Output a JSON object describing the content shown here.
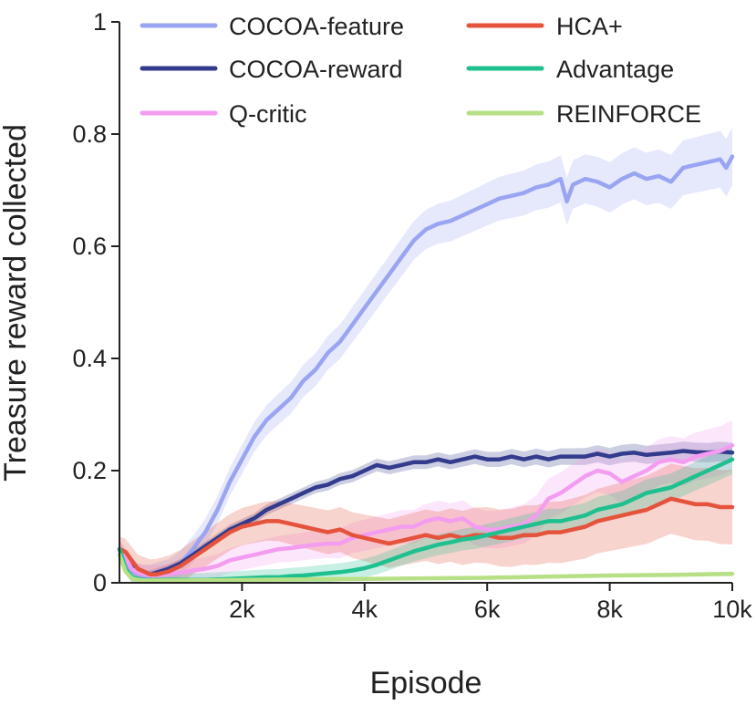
{
  "chart_data": {
    "type": "line",
    "xlabel": "Episode",
    "ylabel": "Treasure reward collected",
    "xlim": [
      0,
      10000
    ],
    "ylim": [
      0,
      1
    ],
    "x_ticks": [
      {
        "value": 2000,
        "label": "2k"
      },
      {
        "value": 4000,
        "label": "4k"
      },
      {
        "value": 6000,
        "label": "6k"
      },
      {
        "value": 8000,
        "label": "8k"
      },
      {
        "value": 10000,
        "label": "10k"
      }
    ],
    "y_ticks": [
      {
        "value": 0,
        "label": "0"
      },
      {
        "value": 0.2,
        "label": "0.2"
      },
      {
        "value": 0.4,
        "label": "0.4"
      },
      {
        "value": 0.6,
        "label": "0.6"
      },
      {
        "value": 0.8,
        "label": "0.8"
      },
      {
        "value": 1,
        "label": "1"
      }
    ],
    "legend_placement": "top",
    "grid": false,
    "shaded_bands": true,
    "series": [
      {
        "name": "COCOA-feature",
        "color": "#9aa5f2",
        "x": [
          0,
          100,
          200,
          300,
          400,
          500,
          600,
          800,
          1000,
          1200,
          1400,
          1600,
          1800,
          2000,
          2200,
          2400,
          2600,
          2800,
          3000,
          3200,
          3400,
          3600,
          3800,
          4000,
          4200,
          4400,
          4600,
          4800,
          5000,
          5200,
          5400,
          5600,
          5800,
          6000,
          6200,
          6400,
          6600,
          6800,
          7000,
          7200,
          7300,
          7400,
          7600,
          7800,
          8000,
          8200,
          8400,
          8600,
          8800,
          9000,
          9200,
          9400,
          9600,
          9800,
          9900,
          10000
        ],
        "y": [
          0.06,
          0.04,
          0.02,
          0.015,
          0.012,
          0.012,
          0.015,
          0.02,
          0.035,
          0.06,
          0.09,
          0.13,
          0.18,
          0.22,
          0.26,
          0.29,
          0.31,
          0.33,
          0.36,
          0.38,
          0.41,
          0.43,
          0.46,
          0.49,
          0.52,
          0.55,
          0.58,
          0.61,
          0.63,
          0.64,
          0.645,
          0.655,
          0.665,
          0.675,
          0.685,
          0.69,
          0.695,
          0.705,
          0.71,
          0.72,
          0.68,
          0.71,
          0.72,
          0.715,
          0.705,
          0.72,
          0.73,
          0.72,
          0.725,
          0.715,
          0.74,
          0.745,
          0.75,
          0.755,
          0.74,
          0.76
        ],
        "band": 0.035
      },
      {
        "name": "COCOA-reward",
        "color": "#333b8c",
        "x": [
          0,
          100,
          200,
          300,
          400,
          500,
          600,
          800,
          1000,
          1200,
          1400,
          1600,
          1800,
          2000,
          2200,
          2400,
          2600,
          2800,
          3000,
          3200,
          3400,
          3600,
          3800,
          4000,
          4200,
          4400,
          4600,
          4800,
          5000,
          5200,
          5400,
          5600,
          5800,
          6000,
          6200,
          6400,
          6600,
          6800,
          7000,
          7200,
          7400,
          7600,
          7800,
          8000,
          8200,
          8400,
          8600,
          8800,
          9000,
          9200,
          9400,
          9600,
          9800,
          10000
        ],
        "y": [
          0.06,
          0.05,
          0.03,
          0.02,
          0.015,
          0.015,
          0.018,
          0.025,
          0.035,
          0.05,
          0.065,
          0.08,
          0.095,
          0.105,
          0.115,
          0.13,
          0.14,
          0.15,
          0.16,
          0.17,
          0.175,
          0.185,
          0.19,
          0.2,
          0.21,
          0.205,
          0.21,
          0.215,
          0.215,
          0.22,
          0.215,
          0.22,
          0.225,
          0.22,
          0.22,
          0.225,
          0.22,
          0.225,
          0.22,
          0.225,
          0.225,
          0.225,
          0.23,
          0.225,
          0.23,
          0.232,
          0.228,
          0.23,
          0.232,
          0.235,
          0.233,
          0.232,
          0.234,
          0.232
        ],
        "band": 0.012
      },
      {
        "name": "Q-critic",
        "color": "#f39cf0",
        "x": [
          0,
          100,
          200,
          300,
          400,
          500,
          600,
          800,
          1000,
          1200,
          1400,
          1600,
          1800,
          2000,
          2200,
          2400,
          2600,
          2800,
          3000,
          3200,
          3400,
          3600,
          3800,
          4000,
          4200,
          4400,
          4600,
          4800,
          5000,
          5200,
          5400,
          5600,
          5800,
          6000,
          6200,
          6400,
          6600,
          6800,
          7000,
          7200,
          7400,
          7600,
          7800,
          8000,
          8200,
          8400,
          8600,
          8800,
          9000,
          9200,
          9400,
          9600,
          9800,
          10000
        ],
        "y": [
          0.06,
          0.045,
          0.025,
          0.018,
          0.015,
          0.013,
          0.013,
          0.015,
          0.018,
          0.022,
          0.025,
          0.03,
          0.04,
          0.045,
          0.05,
          0.055,
          0.06,
          0.062,
          0.065,
          0.068,
          0.07,
          0.07,
          0.08,
          0.085,
          0.09,
          0.095,
          0.1,
          0.1,
          0.11,
          0.115,
          0.11,
          0.115,
          0.1,
          0.095,
          0.095,
          0.1,
          0.105,
          0.12,
          0.15,
          0.16,
          0.175,
          0.19,
          0.2,
          0.195,
          0.18,
          0.19,
          0.2,
          0.215,
          0.22,
          0.215,
          0.225,
          0.23,
          0.235,
          0.245
        ],
        "band": 0.03
      },
      {
        "name": "HCA+",
        "color": "#e5533c",
        "x": [
          0,
          100,
          200,
          300,
          400,
          500,
          600,
          800,
          1000,
          1200,
          1400,
          1600,
          1800,
          2000,
          2200,
          2400,
          2600,
          2800,
          3000,
          3200,
          3400,
          3600,
          3800,
          4000,
          4200,
          4400,
          4600,
          4800,
          5000,
          5200,
          5400,
          5600,
          5800,
          6000,
          6200,
          6400,
          6600,
          6800,
          7000,
          7200,
          7400,
          7600,
          7800,
          8000,
          8200,
          8400,
          8600,
          8800,
          9000,
          9200,
          9400,
          9600,
          9800,
          10000
        ],
        "y": [
          0.06,
          0.055,
          0.04,
          0.025,
          0.02,
          0.015,
          0.015,
          0.02,
          0.03,
          0.045,
          0.06,
          0.075,
          0.09,
          0.1,
          0.105,
          0.11,
          0.11,
          0.105,
          0.1,
          0.095,
          0.09,
          0.095,
          0.085,
          0.08,
          0.075,
          0.07,
          0.075,
          0.08,
          0.085,
          0.08,
          0.085,
          0.08,
          0.085,
          0.085,
          0.08,
          0.08,
          0.085,
          0.085,
          0.09,
          0.09,
          0.095,
          0.1,
          0.11,
          0.115,
          0.12,
          0.125,
          0.13,
          0.14,
          0.15,
          0.145,
          0.14,
          0.14,
          0.135,
          0.135
        ],
        "band": 0.045
      },
      {
        "name": "Advantage",
        "color": "#1fc08f",
        "x": [
          0,
          100,
          200,
          300,
          400,
          500,
          600,
          800,
          1000,
          1200,
          1400,
          1600,
          1800,
          2000,
          2200,
          2400,
          2600,
          2800,
          3000,
          3200,
          3400,
          3600,
          3800,
          4000,
          4200,
          4400,
          4600,
          4800,
          5000,
          5200,
          5400,
          5600,
          5800,
          6000,
          6200,
          6400,
          6600,
          6800,
          7000,
          7200,
          7400,
          7600,
          7800,
          8000,
          8200,
          8400,
          8600,
          8800,
          9000,
          9200,
          9400,
          9600,
          9800,
          10000
        ],
        "y": [
          0.06,
          0.025,
          0.01,
          0.007,
          0.005,
          0.005,
          0.005,
          0.005,
          0.005,
          0.005,
          0.005,
          0.006,
          0.007,
          0.008,
          0.009,
          0.01,
          0.01,
          0.012,
          0.013,
          0.015,
          0.017,
          0.019,
          0.022,
          0.026,
          0.032,
          0.04,
          0.048,
          0.056,
          0.062,
          0.068,
          0.072,
          0.077,
          0.08,
          0.085,
          0.09,
          0.095,
          0.1,
          0.105,
          0.11,
          0.11,
          0.115,
          0.12,
          0.13,
          0.135,
          0.14,
          0.15,
          0.16,
          0.165,
          0.17,
          0.18,
          0.19,
          0.2,
          0.21,
          0.22
        ],
        "band": 0.018
      },
      {
        "name": "REINFORCE",
        "color": "#b7e086",
        "x": [
          0,
          100,
          200,
          300,
          400,
          600,
          1000,
          2000,
          3000,
          4000,
          5000,
          6000,
          7000,
          8000,
          9000,
          10000
        ],
        "y": [
          0.05,
          0.02,
          0.008,
          0.005,
          0.004,
          0.004,
          0.004,
          0.005,
          0.006,
          0.007,
          0.008,
          0.009,
          0.011,
          0.013,
          0.014,
          0.016
        ],
        "band": 0.003
      }
    ]
  }
}
